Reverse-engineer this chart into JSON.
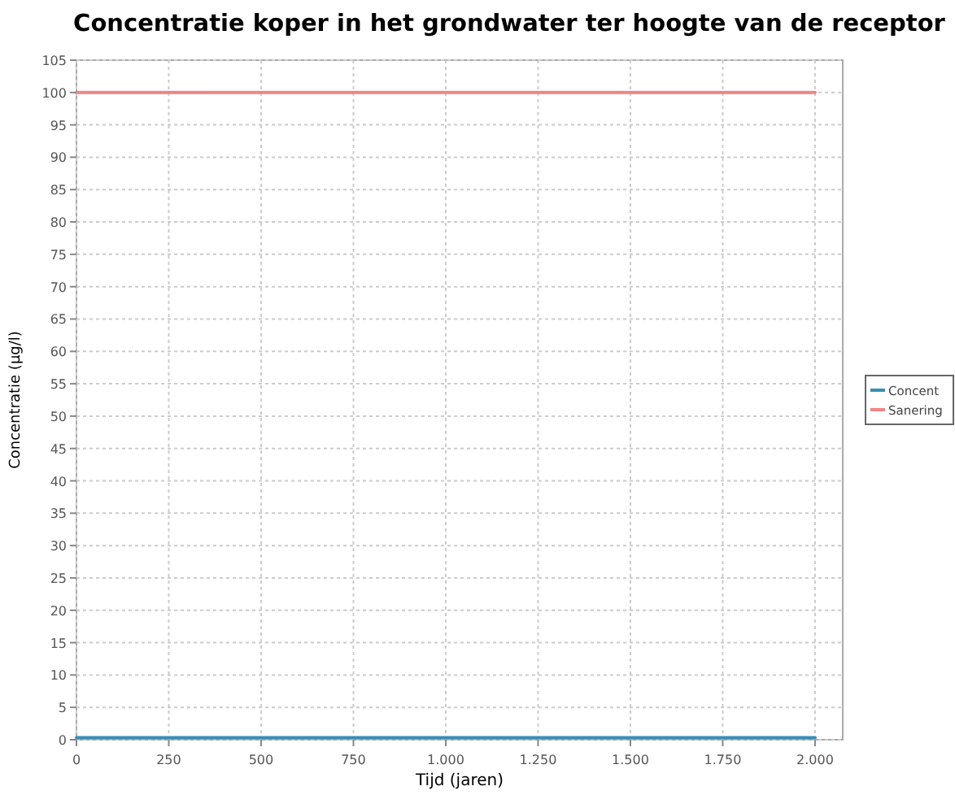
{
  "chart_data": {
    "type": "line",
    "title": "Concentratie koper in het grondwater ter hoogte van de receptor",
    "xlabel": "Tijd (jaren)",
    "ylabel": "Concentratie (µg/l)",
    "xlim": [
      0,
      2075
    ],
    "xticks": [
      0,
      250,
      500,
      750,
      {
        "value": 1000,
        "label": "1.000"
      },
      {
        "value": 1250,
        "label": "1.250"
      },
      {
        "value": 1500,
        "label": "1.500"
      },
      {
        "value": 1750,
        "label": "1.750"
      },
      {
        "value": 2000,
        "label": "2.000"
      }
    ],
    "ylim": [
      0,
      105
    ],
    "yticks": [
      0,
      5,
      10,
      15,
      20,
      25,
      30,
      35,
      40,
      45,
      50,
      55,
      60,
      65,
      70,
      75,
      80,
      85,
      90,
      95,
      100,
      105
    ],
    "x": [
      0,
      2000
    ],
    "grid": true,
    "legend": "right",
    "marker": "none",
    "line_style": "solid",
    "series": [
      {
        "name": "Concent",
        "color": "#3a8db5",
        "values": [
          0.3,
          0.3
        ]
      },
      {
        "name": "Sanering",
        "color": "#f08484",
        "values": [
          100,
          100
        ]
      }
    ]
  }
}
